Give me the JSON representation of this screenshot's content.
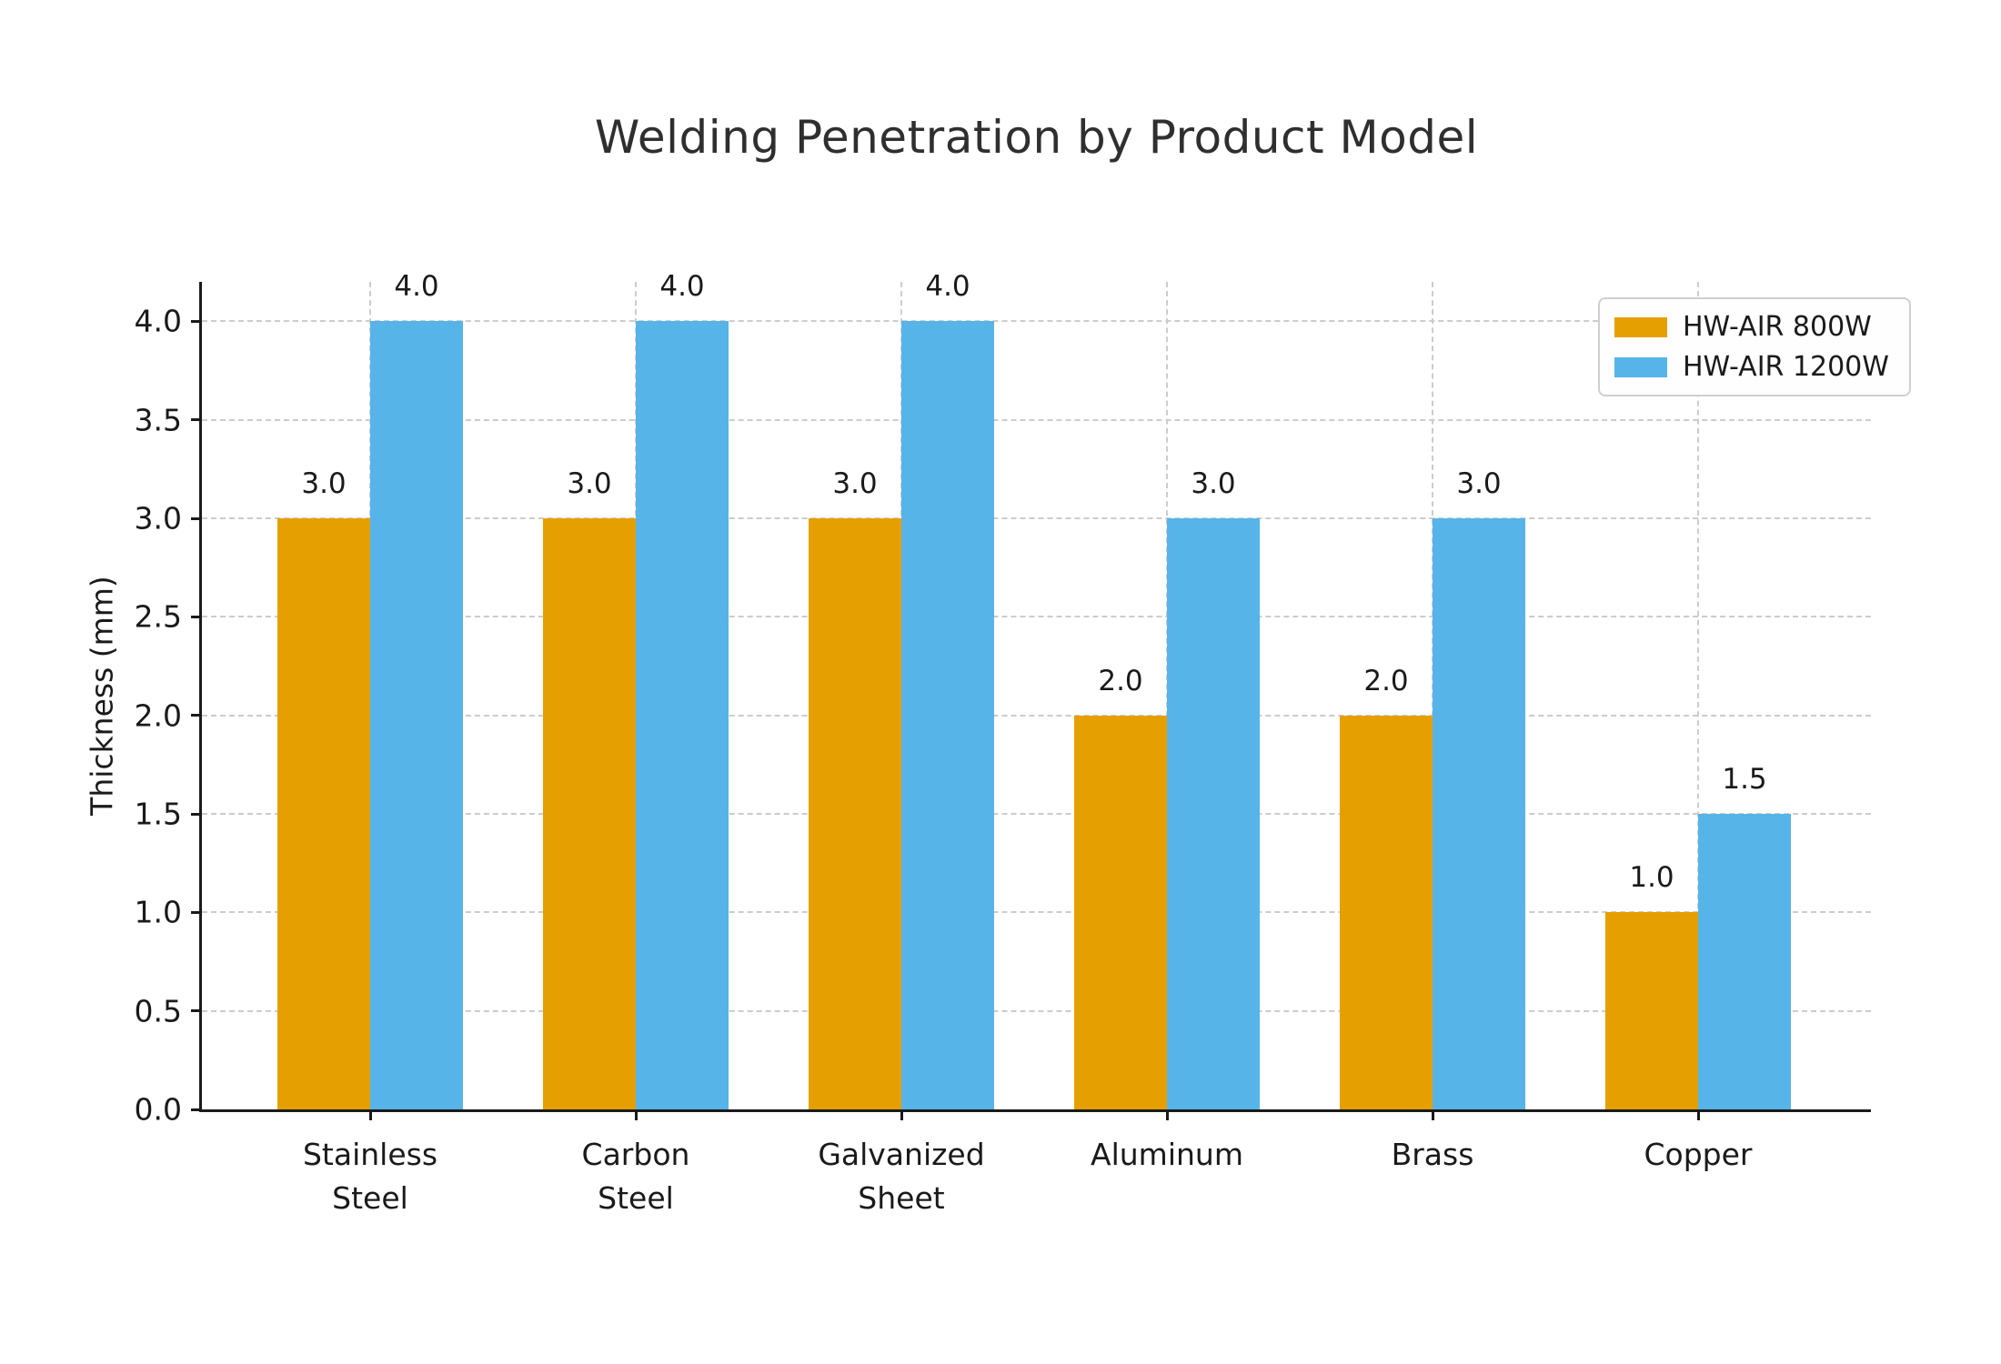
{
  "chart_data": {
    "type": "bar",
    "title": "Welding Penetration by Product Model",
    "xlabel": "",
    "ylabel": "Thickness (mm)",
    "categories": [
      "Stainless\nSteel",
      "Carbon\nSteel",
      "Galvanized\nSheet",
      "Aluminum",
      "Brass",
      "Copper"
    ],
    "series": [
      {
        "name": "HW-AIR 800W",
        "color": "#E69F00",
        "values": [
          3.0,
          3.0,
          3.0,
          2.0,
          2.0,
          1.0
        ]
      },
      {
        "name": "HW-AIR 1200W",
        "color": "#56B4E9",
        "values": [
          4.0,
          4.0,
          4.0,
          3.0,
          3.0,
          1.5
        ]
      }
    ],
    "ylim": [
      0,
      4.2
    ],
    "yticks": [
      0.0,
      0.5,
      1.0,
      1.5,
      2.0,
      2.5,
      3.0,
      3.5,
      4.0
    ],
    "grid": "dashed, horizontal at yticks and vertical at category centers",
    "legend_position": "upper right",
    "bar_value_labels": true,
    "value_label_format": "one-decimal"
  },
  "colors": {
    "series_800w": "#E69F00",
    "series_1200w": "#56B4E9",
    "grid": "#cccccc",
    "axis": "#1a1a1a",
    "title_text": "#2f2f2f",
    "background": "#ffffff"
  }
}
